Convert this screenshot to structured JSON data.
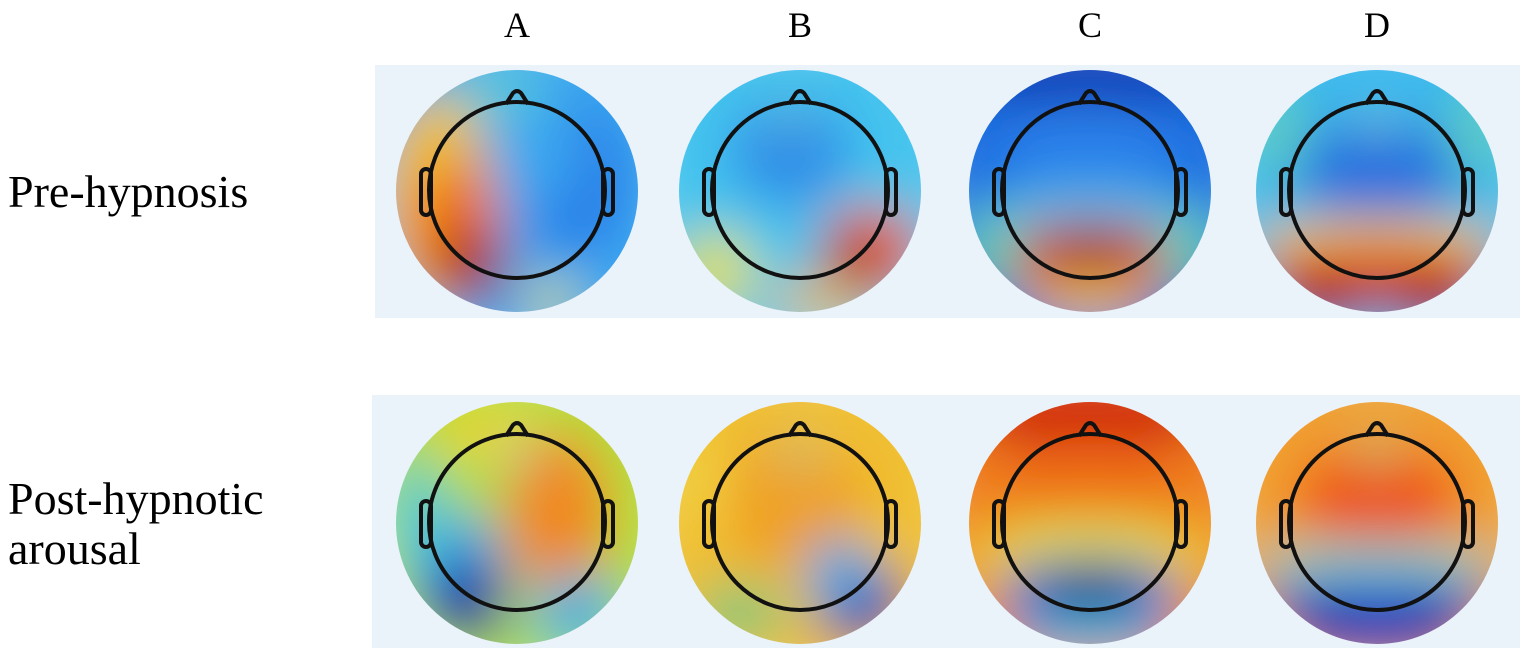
{
  "columns": [
    "A",
    "B",
    "C",
    "D"
  ],
  "rows": [
    {
      "label": [
        "Pre-hypnosis"
      ]
    },
    {
      "label": [
        "Post-hypnotic",
        "arousal"
      ]
    }
  ]
}
